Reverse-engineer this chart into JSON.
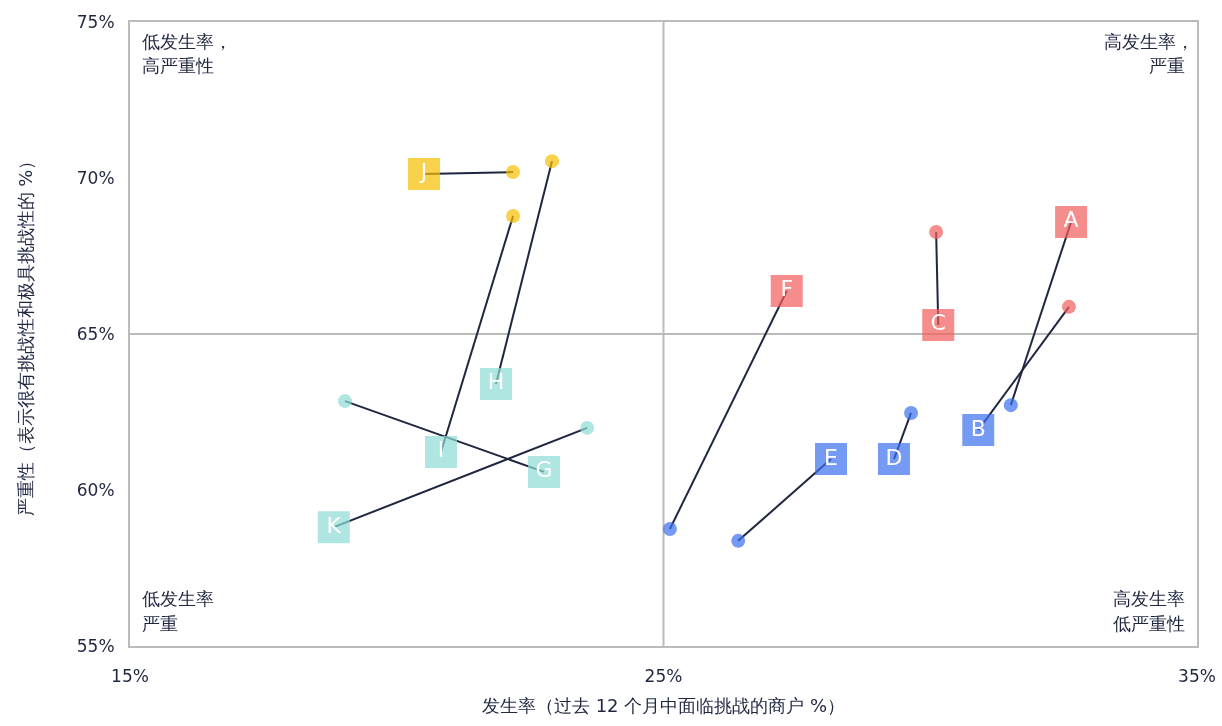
{
  "chart_data": {
    "type": "line",
    "xlabel": "发生率（过去 12 个月中面临挑战的商户 %）",
    "ylabel": "严重性（表示很有挑战性和极具挑战性的 %）",
    "xlim": [
      15,
      35
    ],
    "xticks": [
      {
        "value": 15,
        "label": "15%"
      },
      {
        "value": 25,
        "label": "25%"
      },
      {
        "value": 35,
        "label": "35%"
      }
    ],
    "ylim": [
      55,
      75
    ],
    "yticks": [
      {
        "value": 55,
        "label": "55%"
      },
      {
        "value": 60,
        "label": "60%"
      },
      {
        "value": 65,
        "label": "65%"
      },
      {
        "value": 70,
        "label": "70%"
      },
      {
        "value": 75,
        "label": "75%"
      }
    ],
    "ref_lines": [
      {
        "axis": "x",
        "value": 25,
        "color": "#bbbbbb"
      },
      {
        "axis": "y",
        "value": 65,
        "color": "#bbbbbb"
      }
    ],
    "annotations": [
      "低发生率，高严重性",
      "高发生率，严重",
      "低发生率严重",
      "高发生率低严重性"
    ],
    "series": [
      {
        "name": "A",
        "x": [
          32.64,
          31.51
        ],
        "values": [
          68.59,
          62.72
        ],
        "colors": [
          "#f25c5c",
          "#3a6ff0"
        ],
        "marker": "square"
      },
      {
        "name": "B",
        "x": [
          30.9,
          32.6
        ],
        "values": [
          61.92,
          65.87
        ],
        "colors": [
          "#3a6ff0",
          "#f25c5c"
        ],
        "marker": "square"
      },
      {
        "name": "C",
        "x": [
          30.15,
          30.11
        ],
        "values": [
          65.29,
          68.27
        ],
        "colors": [
          "#f25c5c",
          "#f25c5c"
        ],
        "marker": "square"
      },
      {
        "name": "D",
        "x": [
          29.32,
          29.64
        ],
        "values": [
          60.99,
          62.47
        ],
        "colors": [
          "#3a6ff0",
          "#3a6ff0"
        ],
        "marker": "square"
      },
      {
        "name": "E",
        "x": [
          28.14,
          26.4
        ],
        "values": [
          60.99,
          58.37
        ],
        "colors": [
          "#3a6ff0",
          "#3a6ff0"
        ],
        "marker": "square"
      },
      {
        "name": "F",
        "x": [
          27.31,
          25.12
        ],
        "values": [
          66.38,
          58.75
        ],
        "colors": [
          "#f25c5c",
          "#3a6ff0"
        ],
        "marker": "square"
      },
      {
        "name": "G",
        "x": [
          22.76,
          19.03
        ],
        "values": [
          60.58,
          62.85
        ],
        "colors": [
          "#8edcd4",
          "#8edcd4"
        ],
        "marker": "square"
      },
      {
        "name": "H",
        "x": [
          21.86,
          22.91
        ],
        "values": [
          63.4,
          70.54
        ],
        "colors": [
          "#8edcd4",
          "#f7be00"
        ],
        "marker": "square"
      },
      {
        "name": "I",
        "x": [
          20.83,
          22.18
        ],
        "values": [
          61.22,
          68.78
        ],
        "colors": [
          "#8edcd4",
          "#f7be00"
        ],
        "marker": "square"
      },
      {
        "name": "J",
        "x": [
          20.51,
          22.18
        ],
        "values": [
          70.13,
          70.19
        ],
        "colors": [
          "#f7be00",
          "#f7be00"
        ],
        "marker": "square"
      },
      {
        "name": "K",
        "x": [
          18.82,
          23.57
        ],
        "values": [
          58.81,
          61.99
        ],
        "colors": [
          "#8edcd4",
          "#8edcd4"
        ],
        "marker": "square"
      }
    ]
  }
}
